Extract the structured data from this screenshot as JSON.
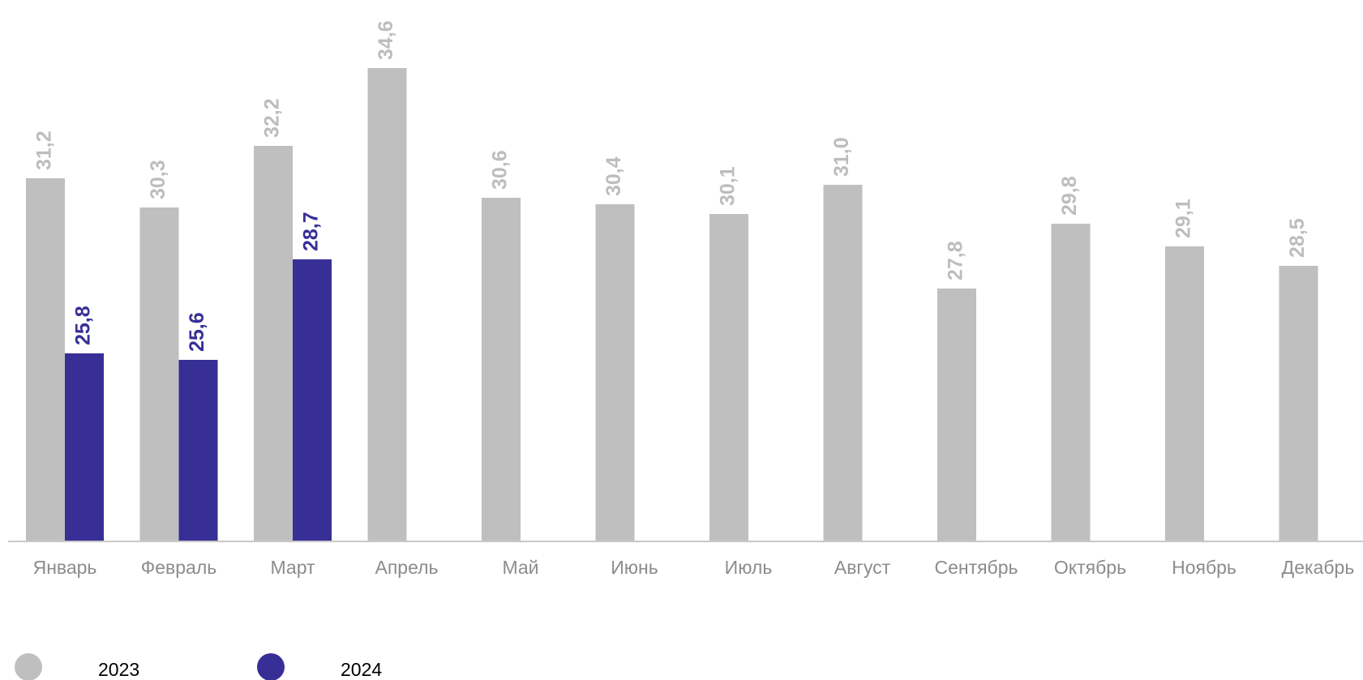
{
  "chart_data": {
    "type": "bar",
    "categories": [
      "Январь",
      "Февраль",
      "Март",
      "Апрель",
      "Май",
      "Июнь",
      "Июль",
      "Август",
      "Сентябрь",
      "Октябрь",
      "Ноябрь",
      "Декабрь"
    ],
    "series": [
      {
        "name": "2023",
        "color": "#bfbfbf",
        "label_color": "#bdbdbd",
        "values": [
          31.2,
          30.3,
          32.2,
          34.6,
          30.6,
          30.4,
          30.1,
          31.0,
          27.8,
          29.8,
          29.1,
          28.5
        ],
        "value_labels": [
          "31,2",
          "30,3",
          "32,2",
          "34,6",
          "30,6",
          "30,4",
          "30,1",
          "31,0",
          "27,8",
          "29,8",
          "29,1",
          "28,5"
        ]
      },
      {
        "name": "2024",
        "color": "#372f96",
        "label_color": "#372f96",
        "values": [
          25.8,
          25.6,
          28.7,
          null,
          null,
          null,
          null,
          null,
          null,
          null,
          null,
          null
        ],
        "value_labels": [
          "25,8",
          "25,6",
          "28,7",
          null,
          null,
          null,
          null,
          null,
          null,
          null,
          null,
          null
        ]
      }
    ],
    "ylim": [
      20,
      36.7
    ],
    "grid": false,
    "legend": "bottom-left"
  }
}
